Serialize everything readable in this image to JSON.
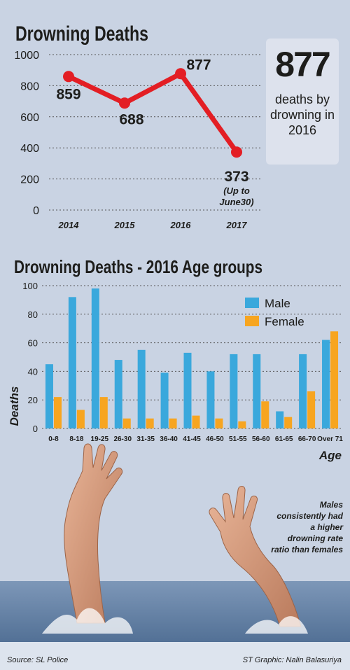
{
  "chart_data": [
    {
      "type": "line",
      "title": "Drowning Deaths",
      "x": [
        "2014",
        "2015",
        "2016",
        "2017"
      ],
      "values": [
        859,
        688,
        877,
        373
      ],
      "data_labels": [
        "859",
        "688",
        "877",
        "373"
      ],
      "notes": [
        "",
        "",
        "",
        "(Up to June30)"
      ],
      "ylim": [
        0,
        1000
      ],
      "yticks": [
        0,
        200,
        400,
        600,
        800,
        1000
      ],
      "grid": true,
      "color": "#e31e24"
    },
    {
      "type": "bar",
      "title": "Drowning Deaths - 2016 Age groups",
      "categories": [
        "0-8",
        "8-18",
        "19-25",
        "26-30",
        "31-35",
        "36-40",
        "41-45",
        "46-50",
        "51-55",
        "56-60",
        "61-65",
        "66-70",
        "Over 71"
      ],
      "series": [
        {
          "name": "Male",
          "values": [
            45,
            92,
            98,
            48,
            55,
            39,
            53,
            40,
            52,
            52,
            12,
            52,
            62
          ],
          "color": "#3aa8dc"
        },
        {
          "name": "Female",
          "values": [
            22,
            13,
            22,
            7,
            7,
            7,
            9,
            7,
            5,
            19,
            8,
            26,
            68
          ],
          "color": "#f7a520"
        }
      ],
      "xlabel": "Age",
      "ylabel": "Deaths",
      "ylim": [
        0,
        100
      ],
      "yticks": [
        0,
        20,
        40,
        60,
        80,
        100
      ],
      "grid": true,
      "legend": "top-right"
    }
  ],
  "callout": {
    "number": "877",
    "line1": "deaths by",
    "line2": "drowning in",
    "line3": "2016"
  },
  "note": {
    "line1": "Males",
    "line2": "consistently had",
    "line3": "a higher",
    "line4": "drowning rate",
    "line5": "ratio than females"
  },
  "footer": {
    "source": "Source: SL Police",
    "credit": "ST Graphic: Nalin Balasuriya"
  }
}
